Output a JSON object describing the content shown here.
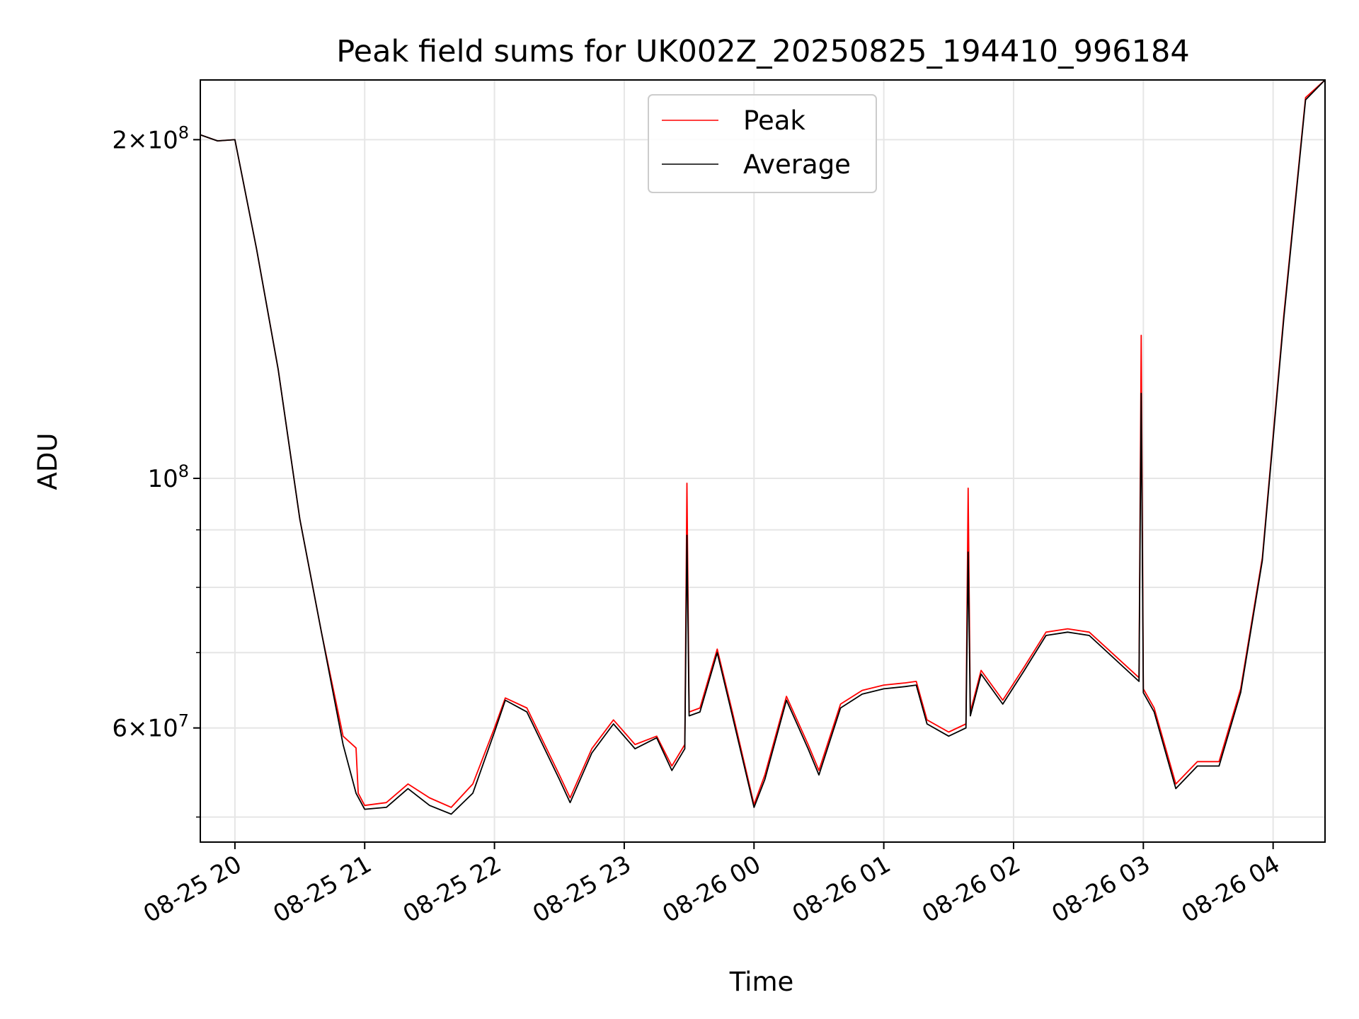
{
  "chart_data": {
    "type": "line",
    "title": "Peak field sums for UK002Z_20250825_194410_996184",
    "xlabel": "Time",
    "ylabel": "ADU",
    "yscale": "log",
    "ylim": [
      47500000,
      226000000
    ],
    "xlim": [
      "08-25 19:44",
      "08-26 04:24"
    ],
    "grid": true,
    "legend_position": "top-center",
    "x_tick_labels": [
      "08-25 20",
      "08-25 21",
      "08-25 22",
      "08-25 23",
      "08-26 00",
      "08-26 01",
      "08-26 02",
      "08-26 03",
      "08-26 04"
    ],
    "y_ticks": [
      {
        "value": 200000000,
        "base": "2×10",
        "exp": "8"
      },
      {
        "value": 100000000,
        "base": "10",
        "exp": "8"
      },
      {
        "value": 60000000,
        "base": "6×10",
        "exp": "7"
      }
    ],
    "y_minor_ticks": [
      50000000,
      70000000,
      80000000,
      90000000
    ],
    "series": [
      {
        "name": "Peak",
        "color": "#ff0000",
        "points": [
          [
            "08-25 19:44",
            202000000
          ],
          [
            "08-25 19:52",
            199500000
          ],
          [
            "08-25 20:00",
            200000000
          ],
          [
            "08-25 20:10",
            160000000
          ],
          [
            "08-25 20:20",
            125000000
          ],
          [
            "08-25 20:30",
            92000000
          ],
          [
            "08-25 20:40",
            73000000
          ],
          [
            "08-25 20:50",
            59000000
          ],
          [
            "08-25 20:56",
            57600000
          ],
          [
            "08-25 20:57",
            52500000
          ],
          [
            "08-25 21:00",
            51200000
          ],
          [
            "08-25 21:10",
            51500000
          ],
          [
            "08-25 21:20",
            53500000
          ],
          [
            "08-25 21:30",
            52000000
          ],
          [
            "08-25 21:40",
            51000000
          ],
          [
            "08-25 21:50",
            53500000
          ],
          [
            "08-25 22:00",
            60000000
          ],
          [
            "08-25 22:05",
            63800000
          ],
          [
            "08-25 22:15",
            62500000
          ],
          [
            "08-25 22:30",
            54500000
          ],
          [
            "08-25 22:35",
            52000000
          ],
          [
            "08-25 22:45",
            57500000
          ],
          [
            "08-25 22:55",
            61000000
          ],
          [
            "08-25 23:05",
            58000000
          ],
          [
            "08-25 23:15",
            59000000
          ],
          [
            "08-25 23:22",
            55500000
          ],
          [
            "08-25 23:28",
            58000000
          ],
          [
            "08-25 23:29",
            99000000
          ],
          [
            "08-25 23:30",
            62000000
          ],
          [
            "08-25 23:35",
            62500000
          ],
          [
            "08-25 23:43",
            70500000
          ],
          [
            "08-25 23:50",
            62000000
          ],
          [
            "08-26 00:00",
            51300000
          ],
          [
            "08-26 00:05",
            54500000
          ],
          [
            "08-26 00:15",
            64000000
          ],
          [
            "08-26 00:25",
            58000000
          ],
          [
            "08-26 00:30",
            55000000
          ],
          [
            "08-26 00:40",
            63000000
          ],
          [
            "08-26 00:50",
            64800000
          ],
          [
            "08-26 01:00",
            65500000
          ],
          [
            "08-26 01:10",
            65800000
          ],
          [
            "08-26 01:15",
            66000000
          ],
          [
            "08-26 01:20",
            61000000
          ],
          [
            "08-26 01:30",
            59500000
          ],
          [
            "08-26 01:38",
            60500000
          ],
          [
            "08-26 01:39",
            98000000
          ],
          [
            "08-26 01:40",
            62000000
          ],
          [
            "08-26 01:45",
            67500000
          ],
          [
            "08-26 01:55",
            63500000
          ],
          [
            "08-26 02:05",
            68000000
          ],
          [
            "08-26 02:15",
            73000000
          ],
          [
            "08-26 02:25",
            73500000
          ],
          [
            "08-26 02:35",
            73000000
          ],
          [
            "08-26 02:58",
            66500000
          ],
          [
            "08-26 02:59",
            134000000
          ],
          [
            "08-26 03:00",
            65000000
          ],
          [
            "08-26 03:05",
            62500000
          ],
          [
            "08-26 03:15",
            53500000
          ],
          [
            "08-26 03:25",
            56000000
          ],
          [
            "08-26 03:35",
            56000000
          ],
          [
            "08-26 03:45",
            65000000
          ],
          [
            "08-26 03:55",
            85000000
          ],
          [
            "08-26 04:05",
            140000000
          ],
          [
            "08-26 04:15",
            218000000
          ],
          [
            "08-26 04:24",
            226000000
          ]
        ]
      },
      {
        "name": "Average",
        "color": "#000000",
        "points": [
          [
            "08-25 19:44",
            202000000
          ],
          [
            "08-25 19:52",
            199500000
          ],
          [
            "08-25 20:00",
            200000000
          ],
          [
            "08-25 20:10",
            160000000
          ],
          [
            "08-25 20:20",
            125000000
          ],
          [
            "08-25 20:30",
            92000000
          ],
          [
            "08-25 20:40",
            73000000
          ],
          [
            "08-25 20:50",
            58000000
          ],
          [
            "08-25 20:56",
            52500000
          ],
          [
            "08-25 21:00",
            50800000
          ],
          [
            "08-25 21:10",
            51000000
          ],
          [
            "08-25 21:20",
            53000000
          ],
          [
            "08-25 21:30",
            51200000
          ],
          [
            "08-25 21:40",
            50300000
          ],
          [
            "08-25 21:50",
            52500000
          ],
          [
            "08-25 22:00",
            59500000
          ],
          [
            "08-25 22:05",
            63500000
          ],
          [
            "08-25 22:15",
            62000000
          ],
          [
            "08-25 22:30",
            54000000
          ],
          [
            "08-25 22:35",
            51500000
          ],
          [
            "08-25 22:45",
            57000000
          ],
          [
            "08-25 22:55",
            60500000
          ],
          [
            "08-25 23:05",
            57500000
          ],
          [
            "08-25 23:15",
            58800000
          ],
          [
            "08-25 23:22",
            55000000
          ],
          [
            "08-25 23:28",
            57500000
          ],
          [
            "08-25 23:29",
            89000000
          ],
          [
            "08-25 23:30",
            61500000
          ],
          [
            "08-25 23:35",
            62000000
          ],
          [
            "08-25 23:43",
            70000000
          ],
          [
            "08-25 23:50",
            61500000
          ],
          [
            "08-26 00:00",
            51000000
          ],
          [
            "08-26 00:05",
            54000000
          ],
          [
            "08-26 00:15",
            63500000
          ],
          [
            "08-26 00:25",
            57500000
          ],
          [
            "08-26 00:30",
            54500000
          ],
          [
            "08-26 00:40",
            62500000
          ],
          [
            "08-26 00:50",
            64300000
          ],
          [
            "08-26 01:00",
            65000000
          ],
          [
            "08-26 01:10",
            65300000
          ],
          [
            "08-26 01:15",
            65500000
          ],
          [
            "08-26 01:20",
            60500000
          ],
          [
            "08-26 01:30",
            59000000
          ],
          [
            "08-26 01:38",
            60000000
          ],
          [
            "08-26 01:39",
            86000000
          ],
          [
            "08-26 01:40",
            61500000
          ],
          [
            "08-26 01:45",
            67000000
          ],
          [
            "08-26 01:55",
            63000000
          ],
          [
            "08-26 02:05",
            67500000
          ],
          [
            "08-26 02:15",
            72500000
          ],
          [
            "08-26 02:25",
            73000000
          ],
          [
            "08-26 02:35",
            72500000
          ],
          [
            "08-26 02:58",
            66000000
          ],
          [
            "08-26 02:59",
            119000000
          ],
          [
            "08-26 03:00",
            64500000
          ],
          [
            "08-26 03:05",
            62000000
          ],
          [
            "08-26 03:15",
            53000000
          ],
          [
            "08-26 03:25",
            55500000
          ],
          [
            "08-26 03:35",
            55500000
          ],
          [
            "08-26 03:45",
            64500000
          ],
          [
            "08-26 03:55",
            84500000
          ],
          [
            "08-26 04:05",
            139000000
          ],
          [
            "08-26 04:15",
            217000000
          ],
          [
            "08-26 04:24",
            226000000
          ]
        ]
      }
    ]
  }
}
